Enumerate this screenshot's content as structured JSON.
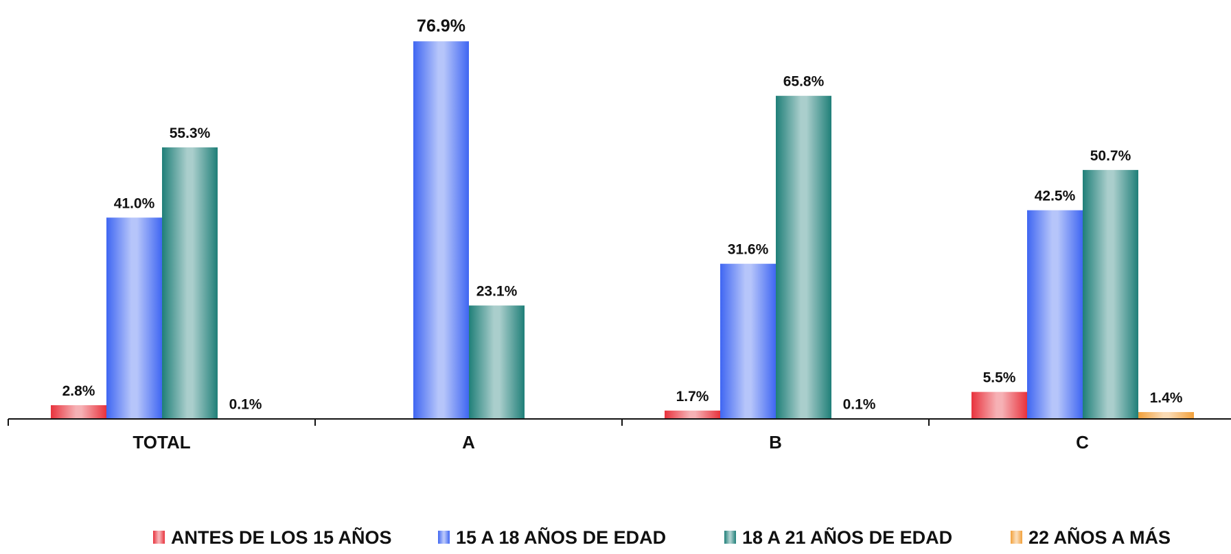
{
  "chart_data": {
    "type": "bar",
    "categories": [
      "TOTAL",
      "A",
      "B",
      "C"
    ],
    "series": [
      {
        "name": "ANTES DE LOS 15 AÑOS",
        "color": "#e8323c",
        "values": [
          2.8,
          null,
          1.7,
          5.5
        ],
        "labels": [
          "2.8%",
          "",
          "1.7%",
          "5.5%"
        ]
      },
      {
        "name": "15 A 18 AÑOS DE EDAD",
        "color": "#3f66f2",
        "values": [
          41.0,
          76.9,
          31.6,
          42.5
        ],
        "labels": [
          "41.0%",
          "76.9%",
          "31.6%",
          "42.5%"
        ]
      },
      {
        "name": "18 A 21 AÑOS DE EDAD",
        "color": "#1f7f78",
        "values": [
          55.3,
          23.1,
          65.8,
          50.7
        ],
        "labels": [
          "55.3%",
          "23.1%",
          "65.8%",
          "50.7%"
        ]
      },
      {
        "name": "22 AÑOS A MÁS",
        "color": "#f2a03a",
        "values": [
          0.1,
          null,
          0.1,
          1.4
        ],
        "labels": [
          "0.1%",
          "",
          "0.1%",
          "1.4%"
        ]
      }
    ],
    "ylim": [
      0,
      80
    ],
    "grid": false,
    "legend_position": "bottom",
    "title": "",
    "xlabel": "",
    "ylabel": ""
  }
}
